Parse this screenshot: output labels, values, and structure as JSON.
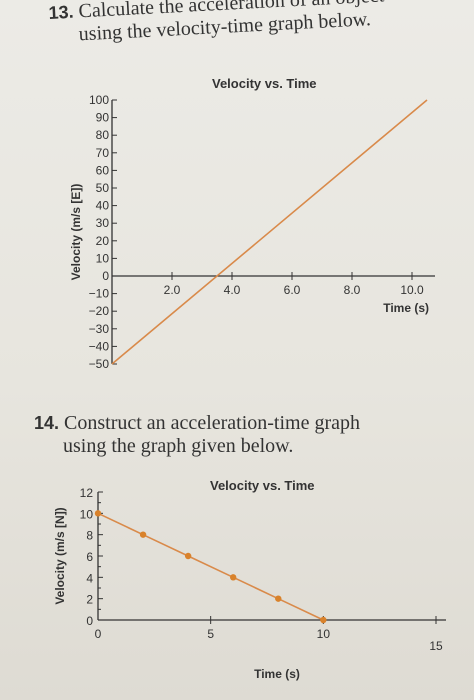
{
  "problem13": {
    "number": "13.",
    "line1": "Calculate the acceleration of an object",
    "line2": "using the velocity-time graph below."
  },
  "problem14": {
    "number": "14.",
    "line1": "Construct an acceleration-time graph",
    "line2": "using the graph given below."
  },
  "colors": {
    "line": "#d98a4a",
    "axis": "#333333",
    "point": "#d9822b"
  },
  "chart_data": [
    {
      "type": "line",
      "title": "Velocity vs. Time",
      "xlabel": "Time (s)",
      "ylabel": "Velocity (m/s [E])",
      "xlim": [
        0,
        10.5
      ],
      "ylim": [
        -50,
        100
      ],
      "xticks": [
        "2.0",
        "4.0",
        "6.0",
        "8.0",
        "10.0"
      ],
      "yticks": [
        "100",
        "90",
        "80",
        "70",
        "60",
        "50",
        "40",
        "30",
        "20",
        "10",
        "0",
        "−10",
        "−20",
        "−30",
        "−40",
        "−50"
      ],
      "x": [
        0,
        10.5
      ],
      "y": [
        -50,
        100
      ],
      "grid": false
    },
    {
      "type": "line",
      "title": "Velocity vs. Time",
      "xlabel": "Time (s)",
      "ylabel": "Velocity (m/s [N])",
      "xlim": [
        0,
        15
      ],
      "ylim": [
        0,
        12
      ],
      "xticks": [
        "0",
        "5",
        "10",
        "15"
      ],
      "yticks": [
        "12",
        "10",
        "8",
        "6",
        "4",
        "2",
        "0"
      ],
      "x": [
        0,
        2,
        4,
        6,
        8,
        10
      ],
      "y": [
        10,
        8,
        6,
        4,
        2,
        0
      ],
      "grid": false
    }
  ]
}
